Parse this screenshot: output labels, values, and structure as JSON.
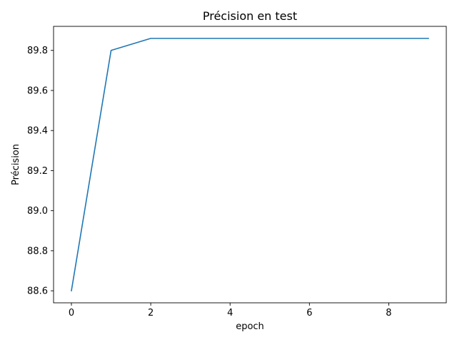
{
  "chart_data": {
    "type": "line",
    "title": "Précision en test",
    "xlabel": "epoch",
    "ylabel": "Précision",
    "xlim": [
      -0.45,
      9.45
    ],
    "ylim": [
      88.54,
      89.92
    ],
    "xticks": [
      0,
      2,
      4,
      6,
      8
    ],
    "xtick_labels": [
      "0",
      "2",
      "4",
      "6",
      "8"
    ],
    "yticks": [
      88.6,
      88.8,
      89.0,
      89.2,
      89.4,
      89.6,
      89.8
    ],
    "ytick_labels": [
      "88.6",
      "88.8",
      "89.0",
      "89.2",
      "89.4",
      "89.6",
      "89.8"
    ],
    "grid": false,
    "series": [
      {
        "color": "#1f77b4",
        "x": [
          0,
          1,
          2,
          3,
          4,
          5,
          6,
          7,
          8,
          9
        ],
        "values": [
          88.6,
          89.8,
          89.86,
          89.86,
          89.86,
          89.86,
          89.86,
          89.86,
          89.86,
          89.86
        ]
      }
    ]
  }
}
